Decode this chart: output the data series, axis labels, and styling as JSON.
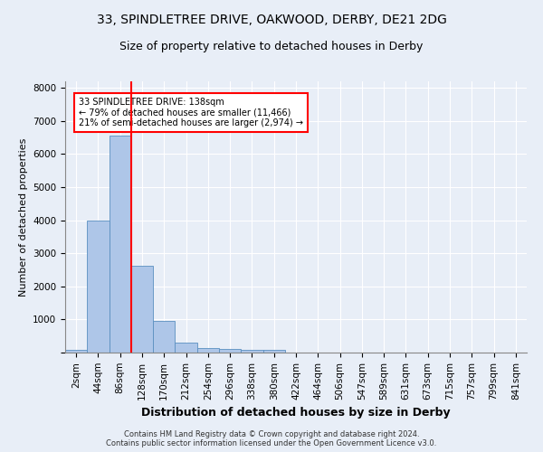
{
  "title1": "33, SPINDLETREE DRIVE, OAKWOOD, DERBY, DE21 2DG",
  "title2": "Size of property relative to detached houses in Derby",
  "xlabel": "Distribution of detached houses by size in Derby",
  "ylabel": "Number of detached properties",
  "footer1": "Contains HM Land Registry data © Crown copyright and database right 2024.",
  "footer2": "Contains public sector information licensed under the Open Government Licence v3.0.",
  "bar_labels": [
    "2sqm",
    "44sqm",
    "86sqm",
    "128sqm",
    "170sqm",
    "212sqm",
    "254sqm",
    "296sqm",
    "338sqm",
    "380sqm",
    "422sqm",
    "464sqm",
    "506sqm",
    "547sqm",
    "589sqm",
    "631sqm",
    "673sqm",
    "715sqm",
    "757sqm",
    "799sqm",
    "841sqm"
  ],
  "bar_values": [
    80,
    3980,
    6550,
    2620,
    960,
    305,
    130,
    120,
    95,
    70,
    0,
    0,
    0,
    0,
    0,
    0,
    0,
    0,
    0,
    0,
    0
  ],
  "bar_color": "#aec6e8",
  "bar_edge_color": "#5a8fc0",
  "vline_x_index": 2.5,
  "vline_color": "red",
  "annotation_text": "33 SPINDLETREE DRIVE: 138sqm\n← 79% of detached houses are smaller (11,466)\n21% of semi-detached houses are larger (2,974) →",
  "annotation_box_color": "white",
  "annotation_box_edge_color": "red",
  "ylim": [
    0,
    8200
  ],
  "yticks": [
    0,
    1000,
    2000,
    3000,
    4000,
    5000,
    6000,
    7000,
    8000
  ],
  "bg_color": "#e8eef7",
  "plot_bg_color": "#e8eef7",
  "title1_fontsize": 10,
  "title2_fontsize": 9,
  "xlabel_fontsize": 9,
  "ylabel_fontsize": 8,
  "tick_fontsize": 7.5,
  "annotation_fontsize": 7,
  "footer_fontsize": 6
}
